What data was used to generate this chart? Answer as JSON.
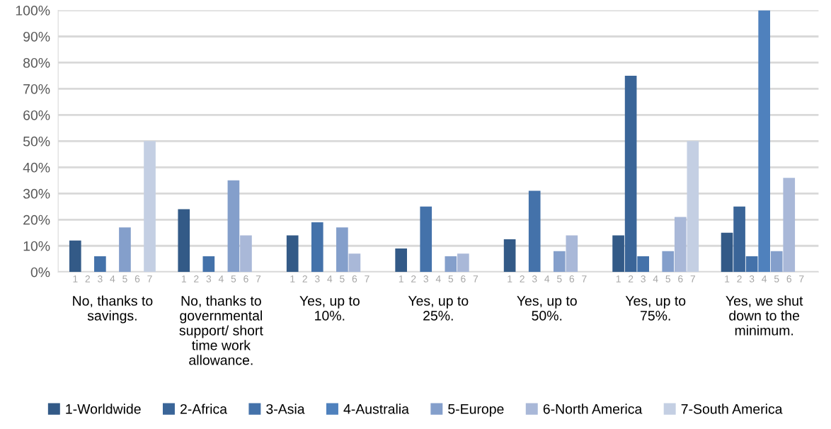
{
  "chart_data": {
    "type": "bar",
    "categories": [
      "No, thanks to\nsavings.",
      "No, thanks to\ngovernmental\nsupport/ short\ntime work\nallowance.",
      "Yes, up to\n10%.",
      "Yes, up to\n25%.",
      "Yes, up to\n50%.",
      "Yes, up to\n75%.",
      "Yes, we shut\ndown to the\nminimum."
    ],
    "series": [
      {
        "name": "1-Worldwide",
        "color": "#335a87",
        "values": [
          12,
          24,
          14,
          9,
          12.5,
          14,
          15
        ]
      },
      {
        "name": "2-Africa",
        "color": "#3a6598",
        "values": [
          0,
          0,
          0,
          0,
          0,
          75,
          25
        ]
      },
      {
        "name": "3-Asia",
        "color": "#4472aa",
        "values": [
          6,
          6,
          19,
          25,
          31,
          6,
          6
        ]
      },
      {
        "name": "4-Australia",
        "color": "#4f81bd",
        "values": [
          0,
          0,
          0,
          0,
          0,
          0,
          100
        ]
      },
      {
        "name": "5-Europe",
        "color": "#849fcb",
        "values": [
          17,
          35,
          17,
          6,
          8,
          8,
          8
        ]
      },
      {
        "name": "6-North America",
        "color": "#a9b8d8",
        "values": [
          0,
          14,
          7,
          7,
          14,
          21,
          36
        ]
      },
      {
        "name": "7-South America",
        "color": "#c4cfe3",
        "values": [
          50,
          0,
          0,
          0,
          0,
          50,
          0
        ]
      }
    ],
    "annotations": [
      "1",
      "2",
      "3",
      "4",
      "5",
      "6",
      "7"
    ],
    "ylim": [
      0,
      100
    ],
    "yticks": [
      {
        "value": 0,
        "label": "0%"
      },
      {
        "value": 10,
        "label": "10%"
      },
      {
        "value": 20,
        "label": "20%"
      },
      {
        "value": 30,
        "label": "30%"
      },
      {
        "value": 40,
        "label": "40%"
      },
      {
        "value": 50,
        "label": "50%"
      },
      {
        "value": 60,
        "label": "60%"
      },
      {
        "value": 70,
        "label": "70%"
      },
      {
        "value": 80,
        "label": "80%"
      },
      {
        "value": 90,
        "label": "90%"
      },
      {
        "value": 100,
        "label": "100%"
      }
    ],
    "grid": "y",
    "legend": "bottom"
  }
}
